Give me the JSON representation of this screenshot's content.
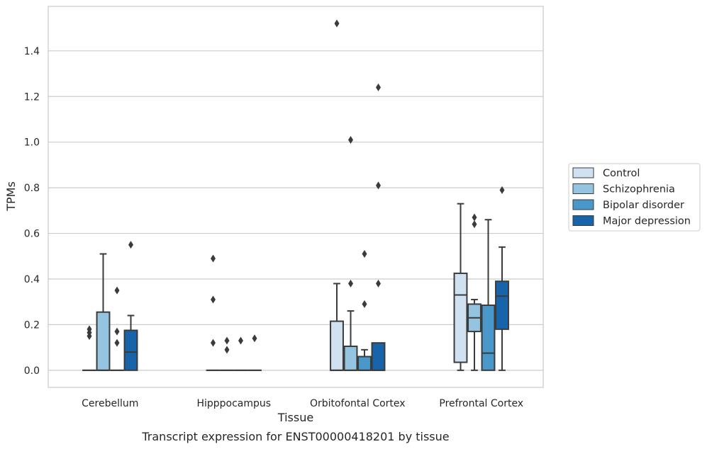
{
  "chart_data": {
    "type": "boxplot",
    "title": "Transcript expression for ENST00000418201 by tissue",
    "xlabel": "Tissue",
    "ylabel": "TPMs",
    "ylim": [
      -0.075,
      1.595
    ],
    "yticks": [
      0.0,
      0.2,
      0.4,
      0.6,
      0.8,
      1.0,
      1.2,
      1.4
    ],
    "ytick_labels": [
      "0.0",
      "0.2",
      "0.4",
      "0.6",
      "0.8",
      "1.0",
      "1.2",
      "1.4"
    ],
    "grid": "horizontal",
    "legend_position": "right",
    "categories": [
      "Cerebellum",
      "Hipppocampus",
      "Orbitofontal Cortex",
      "Prefrontal Cortex"
    ],
    "series": [
      {
        "name": "Control",
        "color": "#d0e1f2",
        "boxes": [
          {
            "q1": 0.0,
            "median": 0.0,
            "q3": 0.0,
            "whisker_low": 0.0,
            "whisker_high": 0.0,
            "outliers": [
              0.15,
              0.165,
              0.18
            ]
          },
          {
            "q1": 0.0,
            "median": 0.0,
            "q3": 0.0,
            "whisker_low": 0.0,
            "whisker_high": 0.0,
            "outliers": [
              0.12,
              0.31,
              0.49
            ]
          },
          {
            "q1": 0.0,
            "median": 0.0,
            "q3": 0.215,
            "whisker_low": 0.0,
            "whisker_high": 0.38,
            "outliers": [
              1.52
            ]
          },
          {
            "q1": 0.035,
            "median": 0.33,
            "q3": 0.425,
            "whisker_low": 0.0,
            "whisker_high": 0.73,
            "outliers": []
          }
        ]
      },
      {
        "name": "Schizophrenia",
        "color": "#94c4df",
        "boxes": [
          {
            "q1": 0.0,
            "median": 0.0,
            "q3": 0.255,
            "whisker_low": 0.0,
            "whisker_high": 0.51,
            "outliers": []
          },
          {
            "q1": 0.0,
            "median": 0.0,
            "q3": 0.0,
            "whisker_low": 0.0,
            "whisker_high": 0.0,
            "outliers": [
              0.09,
              0.13
            ]
          },
          {
            "q1": 0.0,
            "median": 0.0,
            "q3": 0.105,
            "whisker_low": 0.0,
            "whisker_high": 0.26,
            "outliers": [
              0.38,
              1.01
            ]
          },
          {
            "q1": 0.17,
            "median": 0.23,
            "q3": 0.29,
            "whisker_low": 0.0,
            "whisker_high": 0.31,
            "outliers": [
              0.64,
              0.67
            ]
          }
        ]
      },
      {
        "name": "Bipolar disorder",
        "color": "#4a98c9",
        "boxes": [
          {
            "q1": 0.0,
            "median": 0.0,
            "q3": 0.0,
            "whisker_low": 0.0,
            "whisker_high": 0.0,
            "outliers": [
              0.12,
              0.17,
              0.35
            ]
          },
          {
            "q1": 0.0,
            "median": 0.0,
            "q3": 0.0,
            "whisker_low": 0.0,
            "whisker_high": 0.0,
            "outliers": [
              0.13
            ]
          },
          {
            "q1": 0.0,
            "median": 0.0,
            "q3": 0.06,
            "whisker_low": 0.0,
            "whisker_high": 0.09,
            "outliers": [
              0.29,
              0.51
            ]
          },
          {
            "q1": 0.0,
            "median": 0.075,
            "q3": 0.285,
            "whisker_low": 0.0,
            "whisker_high": 0.66,
            "outliers": []
          }
        ]
      },
      {
        "name": "Major depression",
        "color": "#1764ab",
        "boxes": [
          {
            "q1": 0.0,
            "median": 0.08,
            "q3": 0.175,
            "whisker_low": 0.0,
            "whisker_high": 0.24,
            "outliers": [
              0.55
            ]
          },
          {
            "q1": 0.0,
            "median": 0.0,
            "q3": 0.0,
            "whisker_low": 0.0,
            "whisker_high": 0.0,
            "outliers": [
              0.14
            ]
          },
          {
            "q1": 0.0,
            "median": 0.0,
            "q3": 0.12,
            "whisker_low": 0.0,
            "whisker_high": 0.12,
            "outliers": [
              0.38,
              0.81,
              1.24
            ]
          },
          {
            "q1": 0.18,
            "median": 0.325,
            "q3": 0.39,
            "whisker_low": 0.0,
            "whisker_high": 0.54,
            "outliers": [
              0.79
            ]
          }
        ]
      }
    ]
  }
}
